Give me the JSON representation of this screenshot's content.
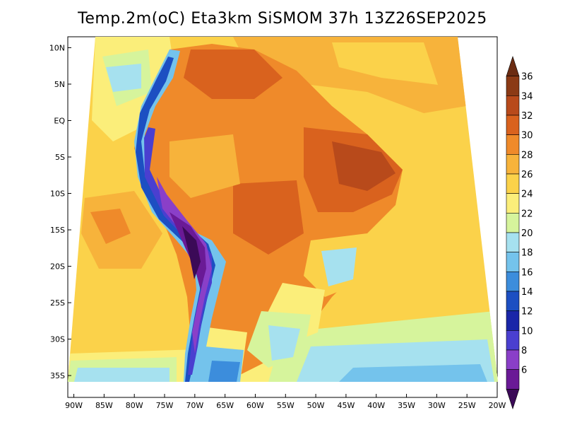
{
  "title": "Temp.2m(oC) Eta3km SiSMOM 37h 13Z26SEP2025",
  "map": {
    "lat_labels": [
      "10N",
      "5N",
      "EQ",
      "5S",
      "10S",
      "15S",
      "20S",
      "25S",
      "30S",
      "35S"
    ],
    "lat_values": [
      10,
      5,
      0,
      -5,
      -10,
      -15,
      -20,
      -25,
      -30,
      -35
    ],
    "lon_labels": [
      "90W",
      "85W",
      "80W",
      "75W",
      "70W",
      "65W",
      "60W",
      "55W",
      "50W",
      "45W",
      "40W",
      "35W",
      "30W",
      "25W",
      "20W"
    ],
    "lon_values": [
      -90,
      -85,
      -80,
      -75,
      -70,
      -65,
      -60,
      -55,
      -50,
      -45,
      -40,
      -35,
      -30,
      -25,
      -20
    ],
    "extent": {
      "lon_min": -91,
      "lon_max": -20,
      "lat_min": -38,
      "lat_max": 11.5
    }
  },
  "colorbar": {
    "labels": [
      "36",
      "34",
      "32",
      "30",
      "28",
      "26",
      "24",
      "22",
      "20",
      "18",
      "16",
      "14",
      "12",
      "10",
      "8",
      "6"
    ],
    "colors": [
      "#6b2c12",
      "#8b3a15",
      "#b84a1b",
      "#d9621e",
      "#ef8a2a",
      "#f7b33b",
      "#fbd24a",
      "#fbee7a",
      "#d6f49c",
      "#a6e1ef",
      "#74c3ec",
      "#3c8ddc",
      "#1c4fc2",
      "#1a26a8",
      "#4a3fd0",
      "#8a3fc8",
      "#6a1a96",
      "#3b0a57"
    ]
  }
}
